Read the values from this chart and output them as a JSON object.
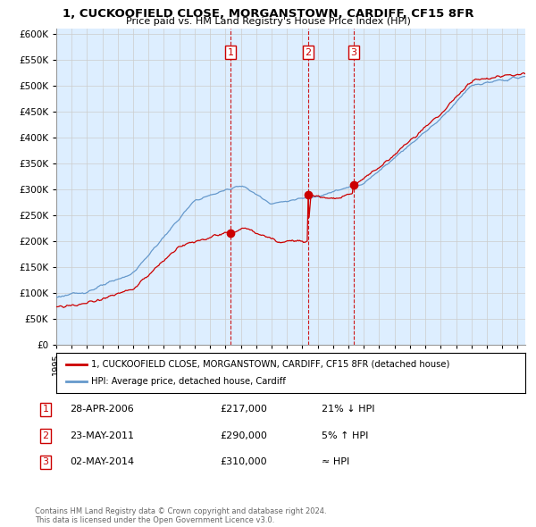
{
  "title_line1": "1, CUCKOOFIELD CLOSE, MORGANSTOWN, CARDIFF, CF15 8FR",
  "title_line2": "Price paid vs. HM Land Registry's House Price Index (HPI)",
  "ytick_values": [
    0,
    50000,
    100000,
    150000,
    200000,
    250000,
    300000,
    350000,
    400000,
    450000,
    500000,
    550000,
    600000
  ],
  "ylim": [
    0,
    610000
  ],
  "hpi_color": "#6699cc",
  "price_color": "#cc0000",
  "vline_color": "#cc0000",
  "grid_color": "#cccccc",
  "plot_bg_color": "#ddeeff",
  "bg_color": "#ffffff",
  "legend_label_red": "1, CUCKOOFIELD CLOSE, MORGANSTOWN, CARDIFF, CF15 8FR (detached house)",
  "legend_label_blue": "HPI: Average price, detached house, Cardiff",
  "sales": [
    {
      "num": 1,
      "date_label": "28-APR-2006",
      "year": 2006.32,
      "price": 217000,
      "pct": "21% ↓ HPI"
    },
    {
      "num": 2,
      "date_label": "23-MAY-2011",
      "year": 2011.39,
      "price": 290000,
      "pct": "5% ↑ HPI"
    },
    {
      "num": 3,
      "date_label": "02-MAY-2014",
      "year": 2014.34,
      "price": 310000,
      "pct": "≈ HPI"
    }
  ],
  "footnote": "Contains HM Land Registry data © Crown copyright and database right 2024.\nThis data is licensed under the Open Government Licence v3.0.",
  "xstart": 1995,
  "xend": 2025.5
}
